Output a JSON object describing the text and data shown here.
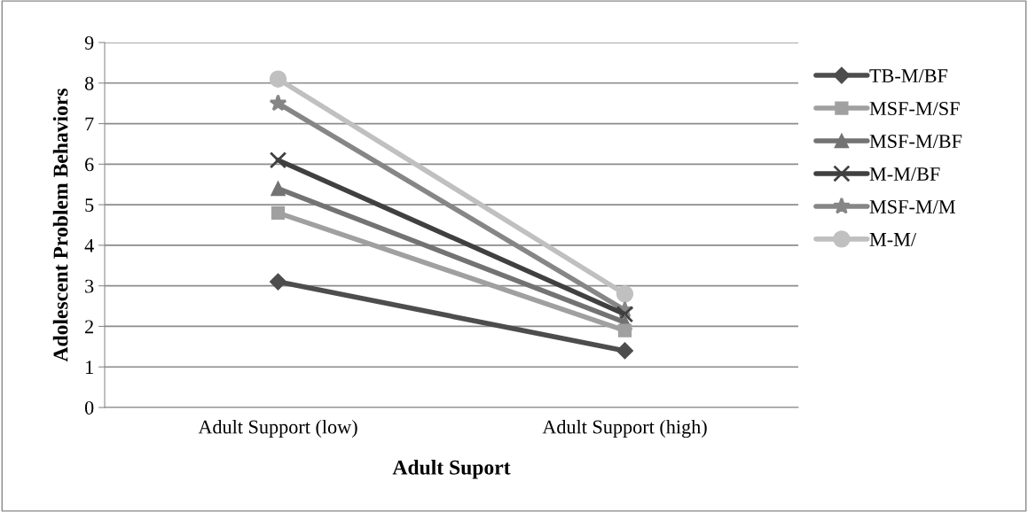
{
  "chart_data": {
    "type": "line",
    "xlabel": "Adult Suport",
    "ylabel": "Adolescent Problem Behaviors",
    "categories": [
      "Adult Support (low)",
      "Adult Support (high)"
    ],
    "series": [
      {
        "name": "TB-M/BF",
        "color": "#4d4d4d",
        "marker": "diamond",
        "values": [
          3.1,
          1.4
        ]
      },
      {
        "name": "MSF-M/SF",
        "color": "#a0a0a0",
        "marker": "square",
        "values": [
          4.8,
          1.9
        ]
      },
      {
        "name": "MSF-M/BF",
        "color": "#737373",
        "marker": "triangle",
        "values": [
          5.4,
          2.1
        ]
      },
      {
        "name": "M-M/BF",
        "color": "#404040",
        "marker": "cross",
        "values": [
          6.1,
          2.3
        ]
      },
      {
        "name": "MSF-M/M",
        "color": "#868686",
        "marker": "star",
        "values": [
          7.5,
          2.4
        ]
      },
      {
        "name": "M-M/",
        "color": "#c0c0c0",
        "marker": "circle",
        "values": [
          8.1,
          2.8
        ]
      }
    ],
    "ylim": [
      0,
      9
    ],
    "yticks": [
      0,
      1,
      2,
      3,
      4,
      5,
      6,
      7,
      8,
      9
    ],
    "grid": "y",
    "legend": "right",
    "line_style": "solid"
  }
}
